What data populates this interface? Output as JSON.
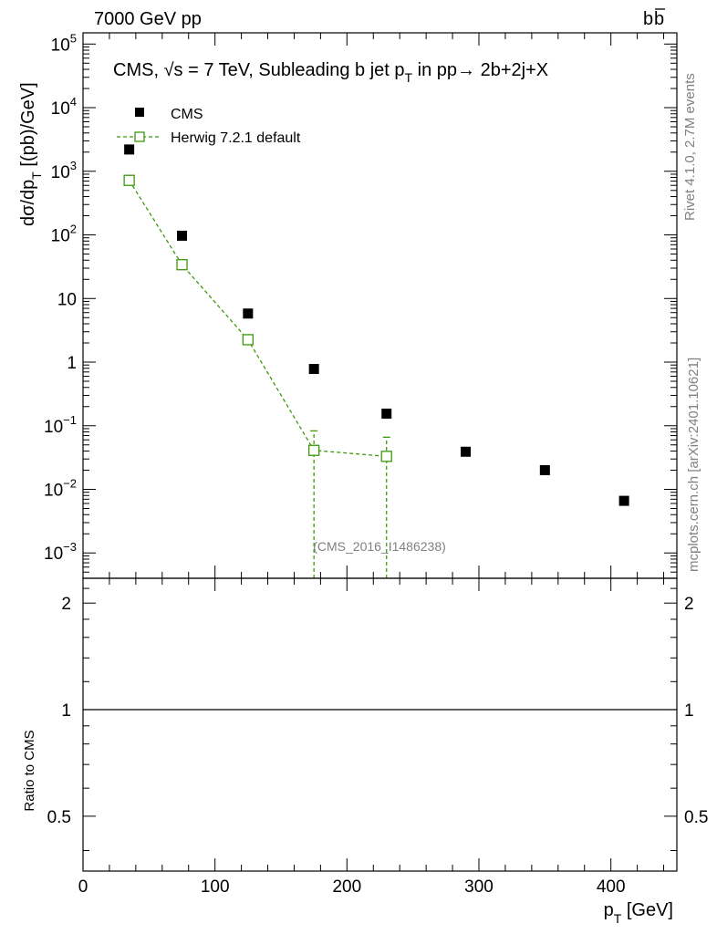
{
  "header": {
    "left": "7000 GeV pp",
    "right_main": "b",
    "right_bar": "b"
  },
  "side_labels": {
    "rivet": "Rivet 4.1.0,  2.7M events",
    "mcplots": "mcplots.cern.ch [arXiv:2401.10621]"
  },
  "chart_data": [
    {
      "type": "scatter",
      "panel": "main",
      "title": "CMS, √s = 7 TeV, Subleading b jet pT in pp→  2b+2j+X",
      "title_parts": {
        "pre": "CMS, ",
        "sqrt": "√",
        "s_eq": "s = 7 TeV, Subleading b jet p",
        "sub": "T",
        "post": " in pp→  2b+2j+X"
      },
      "ylabel": "dσ/dpT  [(pb)/GeV]",
      "ylabel_parts": {
        "main": "dσ/dp",
        "sub": "T",
        "unit": " [(pb)/GeV]"
      },
      "yscale": "log",
      "ylim": [
        0.0004,
        150000
      ],
      "xlim": [
        0,
        450
      ],
      "watermark": "(CMS_2016_I1486238)",
      "legend_position": "top-left",
      "y_ticks": [
        {
          "v": 0.001,
          "b": "10",
          "e": "−3"
        },
        {
          "v": 0.01,
          "b": "10",
          "e": "−2"
        },
        {
          "v": 0.1,
          "b": "10",
          "e": "−1"
        },
        {
          "v": 1,
          "b": "1",
          "e": ""
        },
        {
          "v": 10,
          "b": "10",
          "e": ""
        },
        {
          "v": 100,
          "b": "10",
          "e": "2"
        },
        {
          "v": 1000,
          "b": "10",
          "e": "3"
        },
        {
          "v": 10000,
          "b": "10",
          "e": "4"
        },
        {
          "v": 100000,
          "b": "10",
          "e": "5"
        }
      ],
      "series": [
        {
          "name": "CMS",
          "color": "#000000",
          "marker": "filled-square",
          "points": [
            {
              "x": 35,
              "y": 2200
            },
            {
              "x": 75,
              "y": 97
            },
            {
              "x": 125,
              "y": 5.8
            },
            {
              "x": 175,
              "y": 0.78
            },
            {
              "x": 230,
              "y": 0.155
            },
            {
              "x": 290,
              "y": 0.039
            },
            {
              "x": 350,
              "y": 0.02
            },
            {
              "x": 410,
              "y": 0.0066
            }
          ]
        },
        {
          "name": "Herwig 7.2.1 default",
          "color": "#3a9a0a",
          "marker": "open-square",
          "line": "dashed",
          "points": [
            {
              "x": 35,
              "y": 720,
              "lo": 650,
              "hi": 800
            },
            {
              "x": 75,
              "y": 34,
              "lo": 31,
              "hi": 37
            },
            {
              "x": 125,
              "y": 2.25,
              "lo": 2.0,
              "hi": 2.5
            },
            {
              "x": 175,
              "y": 0.041,
              "lo": 0.0001,
              "hi": 0.083
            },
            {
              "x": 230,
              "y": 0.033,
              "lo": 0.0001,
              "hi": 0.066
            }
          ]
        }
      ]
    },
    {
      "type": "line",
      "panel": "ratio",
      "ylabel": "Ratio to CMS",
      "xlabel": "pT [GeV]",
      "xlabel_parts": {
        "main": "p",
        "sub": "T",
        "unit": " [GeV]"
      },
      "xlim": [
        0,
        450
      ],
      "ylim": [
        0.35,
        2.35
      ],
      "x_ticks": [
        0,
        100,
        200,
        300,
        400
      ],
      "y_ticks": [
        0.5,
        1,
        2
      ],
      "reference": 1,
      "series": [
        {
          "name": "CMS",
          "color": "#000000",
          "values": [
            1
          ]
        }
      ]
    }
  ]
}
